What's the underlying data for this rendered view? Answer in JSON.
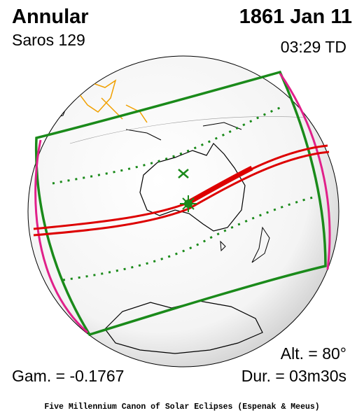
{
  "header": {
    "type": "Annular",
    "saros": "Saros 129",
    "date": "1861 Jan 11",
    "time": "03:29 TD"
  },
  "footer": {
    "altitude": "Alt. = 80°",
    "gamma": "Gam. = -0.1767",
    "duration": "Dur. = 03m30s",
    "credit": "Five Millennium Canon of Solar Eclipses (Espenak & Meeus)"
  }
}
